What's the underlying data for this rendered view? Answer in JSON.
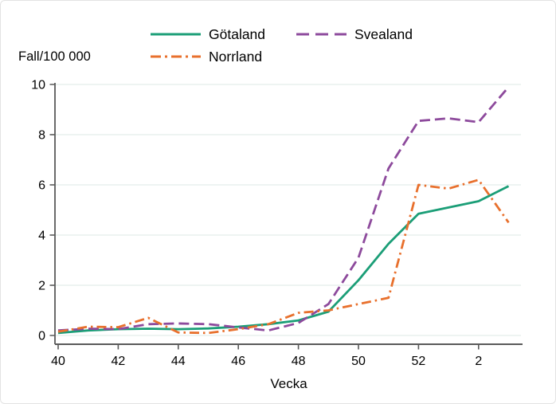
{
  "chart_data": {
    "type": "line",
    "title": "",
    "xlabel": "Vecka",
    "ylabel": "Fall/100 000",
    "ylim": [
      0,
      10
    ],
    "y_ticks": [
      0,
      2,
      4,
      6,
      8,
      10
    ],
    "y_tick_labels": [
      "0",
      "2",
      "4",
      "6",
      "8",
      "10"
    ],
    "grid": true,
    "legend_position": "top-center",
    "x_categories": [
      "40",
      "41",
      "42",
      "43",
      "44",
      "45",
      "46",
      "47",
      "48",
      "49",
      "50",
      "51",
      "52",
      "1",
      "2",
      "3"
    ],
    "x_tick_indices": [
      0,
      2,
      4,
      6,
      8,
      10,
      12,
      14
    ],
    "x_tick_labels": [
      "40",
      "42",
      "44",
      "46",
      "48",
      "50",
      "52",
      "2"
    ],
    "series": [
      {
        "name": "Götaland",
        "color": "#1b9e77",
        "line_style": "solid",
        "values": [
          0.1,
          0.2,
          0.25,
          0.27,
          0.25,
          0.28,
          0.35,
          0.45,
          0.6,
          0.95,
          2.2,
          3.65,
          4.85,
          5.1,
          5.35,
          5.95
        ]
      },
      {
        "name": "Svealand",
        "color": "#8d4a9c",
        "line_style": "dashed",
        "values": [
          0.2,
          0.27,
          0.25,
          0.45,
          0.48,
          0.45,
          0.32,
          0.2,
          0.5,
          1.25,
          3.1,
          6.65,
          8.55,
          8.65,
          8.5,
          9.9
        ]
      },
      {
        "name": "Norrland",
        "color": "#e8702d",
        "line_style": "dashdot",
        "values": [
          0.15,
          0.35,
          0.33,
          0.7,
          0.12,
          0.1,
          0.25,
          0.45,
          0.9,
          1.0,
          1.25,
          1.5,
          6.0,
          5.85,
          6.2,
          4.5
        ]
      }
    ]
  },
  "colors": {
    "axis": "#5a5a5a",
    "grid": "#e9f1ee",
    "text": "#000000",
    "background": "#ffffff"
  }
}
